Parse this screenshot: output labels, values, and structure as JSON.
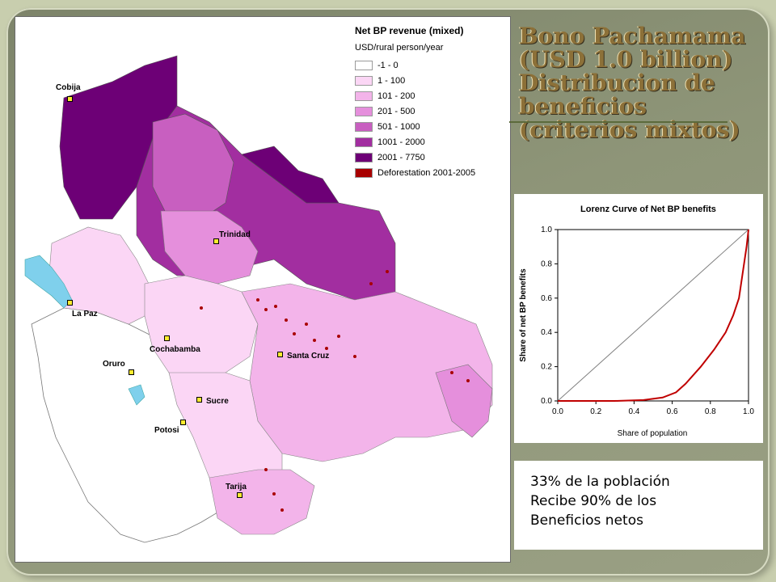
{
  "map": {
    "legend": {
      "title": "Net BP revenue (mixed)",
      "subtitle": "USD/rural person/year",
      "items": [
        {
          "label": "-1 - 0",
          "color": "#ffffff"
        },
        {
          "label": "1 - 100",
          "color": "#fbd6f5"
        },
        {
          "label": "101 - 200",
          "color": "#f3b4ea"
        },
        {
          "label": "201 - 500",
          "color": "#e58fdc"
        },
        {
          "label": "501 - 1000",
          "color": "#c85fc0"
        },
        {
          "label": "1001 - 2000",
          "color": "#a22ea0"
        },
        {
          "label": "2001 - 7750",
          "color": "#6d0076"
        },
        {
          "label": "Deforestation 2001-2005",
          "color": "#a80000"
        }
      ]
    },
    "cities": [
      {
        "name": "Cobija",
        "id": "cobija"
      },
      {
        "name": "Trinidad",
        "id": "trinidad"
      },
      {
        "name": "La Paz",
        "id": "la-paz"
      },
      {
        "name": "Cochabamba",
        "id": "cochabamba"
      },
      {
        "name": "Santa Cruz",
        "id": "santa-cruz"
      },
      {
        "name": "Oruro",
        "id": "oruro"
      },
      {
        "name": "Sucre",
        "id": "sucre"
      },
      {
        "name": "Potosi",
        "id": "potosi"
      },
      {
        "name": "Tarija",
        "id": "tarija"
      }
    ]
  },
  "title": {
    "lines": [
      "Bono Pachamama",
      "(USD 1.0 billion)",
      "Distribucion de",
      "beneficios",
      "(criterios mixtos)"
    ]
  },
  "chart_data": {
    "type": "line",
    "title": "Lorenz Curve of Net BP benefits",
    "xlabel": "Share of population",
    "ylabel": "Share of net BP benefits",
    "xlim": [
      0,
      1
    ],
    "ylim": [
      0,
      1
    ],
    "xticks": [
      "0.0",
      "0.2",
      "0.4",
      "0.6",
      "0.8",
      "1.0"
    ],
    "yticks": [
      "0.0",
      "0.2",
      "0.4",
      "0.6",
      "0.8",
      "1.0"
    ],
    "series": [
      {
        "color": "#c00000",
        "x": [
          0,
          0.3,
          0.45,
          0.55,
          0.62,
          0.67,
          0.75,
          0.82,
          0.88,
          0.92,
          0.95,
          0.97,
          0.99,
          1.0
        ],
        "y": [
          0,
          0.0,
          0.005,
          0.02,
          0.05,
          0.1,
          0.2,
          0.3,
          0.4,
          0.5,
          0.6,
          0.75,
          0.9,
          1.0
        ]
      },
      {
        "color": "#808080",
        "x": [
          0,
          1
        ],
        "y": [
          0,
          1
        ]
      }
    ]
  },
  "note": {
    "lines": [
      "33% de la población",
      "Recibe 90% de los",
      "Beneficios  netos"
    ]
  }
}
